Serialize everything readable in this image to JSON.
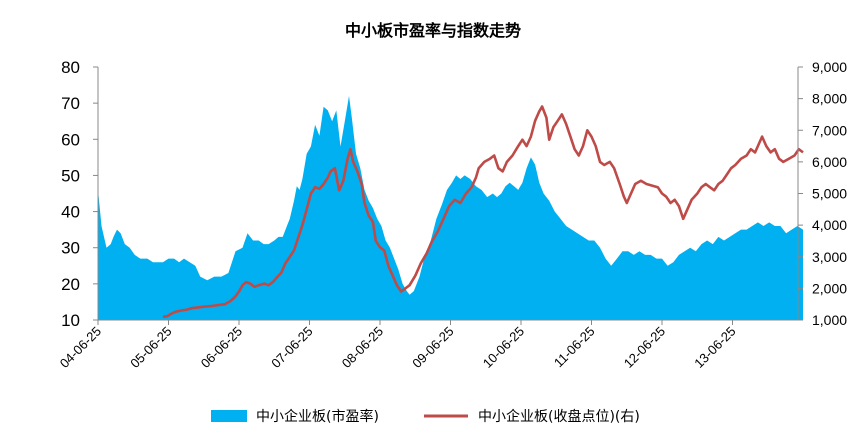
{
  "chart_data": {
    "type": "area+line",
    "title": "中小板市盈率与指数走势",
    "x_ticks": [
      "04-06-25",
      "05-06-25",
      "06-06-25",
      "07-06-25",
      "08-06-25",
      "09-06-25",
      "10-06-25",
      "11-06-25",
      "12-06-25",
      "13-06-25"
    ],
    "y_left": {
      "min": 10,
      "max": 80,
      "ticks": [
        "10",
        "20",
        "30",
        "40",
        "50",
        "60",
        "70",
        "80"
      ]
    },
    "y_right": {
      "min": 1000,
      "max": 9000,
      "ticks": [
        "1,000",
        "2,000",
        "3,000",
        "4,000",
        "5,000",
        "6,000",
        "7,000",
        "8,000",
        "9,000"
      ]
    },
    "legend_position": "bottom",
    "series": [
      {
        "name": "中小企业板(市盈率)",
        "type": "area",
        "axis": "left",
        "color": "#00b0f0",
        "points": [
          [
            0.0,
            46
          ],
          [
            0.05,
            36
          ],
          [
            0.12,
            30
          ],
          [
            0.18,
            31
          ],
          [
            0.22,
            33
          ],
          [
            0.27,
            35
          ],
          [
            0.32,
            34
          ],
          [
            0.38,
            31
          ],
          [
            0.45,
            30
          ],
          [
            0.52,
            28
          ],
          [
            0.6,
            27
          ],
          [
            0.7,
            27
          ],
          [
            0.78,
            26
          ],
          [
            0.85,
            26
          ],
          [
            0.92,
            26
          ],
          [
            1.0,
            27
          ],
          [
            1.08,
            27
          ],
          [
            1.15,
            26
          ],
          [
            1.22,
            27
          ],
          [
            1.3,
            26
          ],
          [
            1.38,
            25
          ],
          [
            1.45,
            22
          ],
          [
            1.55,
            21
          ],
          [
            1.65,
            22
          ],
          [
            1.75,
            22
          ],
          [
            1.85,
            23
          ],
          [
            1.95,
            29
          ],
          [
            2.05,
            30
          ],
          [
            2.12,
            34
          ],
          [
            2.2,
            32
          ],
          [
            2.28,
            32
          ],
          [
            2.35,
            31
          ],
          [
            2.42,
            31
          ],
          [
            2.5,
            32
          ],
          [
            2.56,
            33
          ],
          [
            2.62,
            33
          ],
          [
            2.68,
            36
          ],
          [
            2.72,
            38
          ],
          [
            2.78,
            43
          ],
          [
            2.82,
            47
          ],
          [
            2.86,
            46
          ],
          [
            2.9,
            49
          ],
          [
            2.96,
            56
          ],
          [
            3.02,
            58
          ],
          [
            3.08,
            64
          ],
          [
            3.14,
            61
          ],
          [
            3.2,
            69
          ],
          [
            3.26,
            68
          ],
          [
            3.32,
            65
          ],
          [
            3.38,
            68
          ],
          [
            3.44,
            58
          ],
          [
            3.5,
            65
          ],
          [
            3.56,
            72
          ],
          [
            3.6,
            66
          ],
          [
            3.66,
            56
          ],
          [
            3.72,
            52
          ],
          [
            3.78,
            46
          ],
          [
            3.84,
            43
          ],
          [
            3.9,
            41
          ],
          [
            3.96,
            38
          ],
          [
            4.02,
            36
          ],
          [
            4.08,
            32
          ],
          [
            4.14,
            30
          ],
          [
            4.2,
            27
          ],
          [
            4.26,
            24
          ],
          [
            4.32,
            20
          ],
          [
            4.38,
            18
          ],
          [
            4.42,
            17
          ],
          [
            4.48,
            18
          ],
          [
            4.56,
            22
          ],
          [
            4.64,
            28
          ],
          [
            4.72,
            32
          ],
          [
            4.8,
            38
          ],
          [
            4.88,
            42
          ],
          [
            4.95,
            46
          ],
          [
            5.02,
            48
          ],
          [
            5.08,
            50
          ],
          [
            5.14,
            49
          ],
          [
            5.2,
            50
          ],
          [
            5.28,
            49
          ],
          [
            5.36,
            47
          ],
          [
            5.44,
            46
          ],
          [
            5.52,
            44
          ],
          [
            5.6,
            45
          ],
          [
            5.66,
            44
          ],
          [
            5.72,
            45
          ],
          [
            5.78,
            47
          ],
          [
            5.84,
            48
          ],
          [
            5.9,
            47
          ],
          [
            5.96,
            46
          ],
          [
            6.02,
            48
          ],
          [
            6.08,
            52
          ],
          [
            6.14,
            55
          ],
          [
            6.2,
            53
          ],
          [
            6.26,
            48
          ],
          [
            6.32,
            45
          ],
          [
            6.4,
            43
          ],
          [
            6.48,
            40
          ],
          [
            6.56,
            38
          ],
          [
            6.64,
            36
          ],
          [
            6.72,
            35
          ],
          [
            6.8,
            34
          ],
          [
            6.88,
            33
          ],
          [
            6.96,
            32
          ],
          [
            7.04,
            32
          ],
          [
            7.12,
            30
          ],
          [
            7.2,
            27
          ],
          [
            7.28,
            25
          ],
          [
            7.36,
            27
          ],
          [
            7.44,
            29
          ],
          [
            7.52,
            29
          ],
          [
            7.6,
            28
          ],
          [
            7.68,
            29
          ],
          [
            7.76,
            28
          ],
          [
            7.84,
            28
          ],
          [
            7.92,
            27
          ],
          [
            8.0,
            27
          ],
          [
            8.08,
            25
          ],
          [
            8.16,
            26
          ],
          [
            8.24,
            28
          ],
          [
            8.32,
            29
          ],
          [
            8.4,
            30
          ],
          [
            8.48,
            29
          ],
          [
            8.56,
            31
          ],
          [
            8.64,
            32
          ],
          [
            8.72,
            31
          ],
          [
            8.8,
            33
          ],
          [
            8.88,
            32
          ],
          [
            8.96,
            33
          ],
          [
            9.04,
            34
          ],
          [
            9.12,
            35
          ],
          [
            9.2,
            35
          ],
          [
            9.28,
            36
          ],
          [
            9.36,
            37
          ],
          [
            9.44,
            36
          ],
          [
            9.52,
            37
          ],
          [
            9.6,
            36
          ],
          [
            9.68,
            36
          ],
          [
            9.76,
            34
          ],
          [
            9.84,
            35
          ],
          [
            9.92,
            36
          ],
          [
            10.0,
            35
          ]
        ]
      },
      {
        "name": "中小企业板(收盘点位)(右)",
        "type": "line",
        "axis": "right",
        "color": "#be4b48",
        "points": [
          [
            0.92,
            1100
          ],
          [
            0.98,
            1120
          ],
          [
            1.04,
            1200
          ],
          [
            1.1,
            1260
          ],
          [
            1.18,
            1300
          ],
          [
            1.26,
            1330
          ],
          [
            1.34,
            1380
          ],
          [
            1.42,
            1400
          ],
          [
            1.5,
            1420
          ],
          [
            1.6,
            1440
          ],
          [
            1.7,
            1470
          ],
          [
            1.8,
            1500
          ],
          [
            1.88,
            1600
          ],
          [
            1.95,
            1750
          ],
          [
            2.0,
            1900
          ],
          [
            2.05,
            2100
          ],
          [
            2.1,
            2200
          ],
          [
            2.16,
            2150
          ],
          [
            2.22,
            2050
          ],
          [
            2.28,
            2100
          ],
          [
            2.36,
            2150
          ],
          [
            2.42,
            2100
          ],
          [
            2.48,
            2200
          ],
          [
            2.54,
            2350
          ],
          [
            2.6,
            2500
          ],
          [
            2.66,
            2800
          ],
          [
            2.72,
            3000
          ],
          [
            2.78,
            3200
          ],
          [
            2.84,
            3600
          ],
          [
            2.9,
            4000
          ],
          [
            2.96,
            4500
          ],
          [
            3.02,
            5000
          ],
          [
            3.08,
            5200
          ],
          [
            3.14,
            5150
          ],
          [
            3.2,
            5300
          ],
          [
            3.26,
            5500
          ],
          [
            3.3,
            5700
          ],
          [
            3.36,
            5800
          ],
          [
            3.42,
            5100
          ],
          [
            3.48,
            5400
          ],
          [
            3.54,
            6100
          ],
          [
            3.58,
            6400
          ],
          [
            3.62,
            6000
          ],
          [
            3.68,
            5700
          ],
          [
            3.74,
            5300
          ],
          [
            3.78,
            4700
          ],
          [
            3.84,
            4300
          ],
          [
            3.9,
            4100
          ],
          [
            3.94,
            3500
          ],
          [
            4.0,
            3300
          ],
          [
            4.06,
            3200
          ],
          [
            4.12,
            2700
          ],
          [
            4.18,
            2400
          ],
          [
            4.24,
            2100
          ],
          [
            4.3,
            1900
          ],
          [
            4.36,
            2000
          ],
          [
            4.42,
            2100
          ],
          [
            4.5,
            2400
          ],
          [
            4.58,
            2800
          ],
          [
            4.66,
            3100
          ],
          [
            4.74,
            3500
          ],
          [
            4.82,
            3800
          ],
          [
            4.9,
            4200
          ],
          [
            4.98,
            4600
          ],
          [
            5.06,
            4800
          ],
          [
            5.14,
            4700
          ],
          [
            5.22,
            5000
          ],
          [
            5.3,
            5200
          ],
          [
            5.36,
            5500
          ],
          [
            5.4,
            5800
          ],
          [
            5.48,
            6000
          ],
          [
            5.56,
            6100
          ],
          [
            5.62,
            6200
          ],
          [
            5.68,
            5800
          ],
          [
            5.74,
            5700
          ],
          [
            5.8,
            6000
          ],
          [
            5.88,
            6200
          ],
          [
            5.96,
            6500
          ],
          [
            6.02,
            6700
          ],
          [
            6.08,
            6500
          ],
          [
            6.14,
            6800
          ],
          [
            6.2,
            7300
          ],
          [
            6.26,
            7600
          ],
          [
            6.3,
            7750
          ],
          [
            6.36,
            7400
          ],
          [
            6.4,
            6700
          ],
          [
            6.46,
            7100
          ],
          [
            6.52,
            7300
          ],
          [
            6.58,
            7500
          ],
          [
            6.64,
            7200
          ],
          [
            6.7,
            6800
          ],
          [
            6.76,
            6400
          ],
          [
            6.82,
            6200
          ],
          [
            6.88,
            6500
          ],
          [
            6.94,
            7000
          ],
          [
            7.0,
            6800
          ],
          [
            7.06,
            6500
          ],
          [
            7.12,
            6000
          ],
          [
            7.18,
            5900
          ],
          [
            7.26,
            6000
          ],
          [
            7.32,
            5800
          ],
          [
            7.4,
            5300
          ],
          [
            7.46,
            4900
          ],
          [
            7.5,
            4700
          ],
          [
            7.56,
            5000
          ],
          [
            7.62,
            5300
          ],
          [
            7.7,
            5400
          ],
          [
            7.78,
            5300
          ],
          [
            7.86,
            5250
          ],
          [
            7.94,
            5200
          ],
          [
            8.0,
            5000
          ],
          [
            8.06,
            4900
          ],
          [
            8.12,
            4700
          ],
          [
            8.18,
            4800
          ],
          [
            8.24,
            4600
          ],
          [
            8.3,
            4200
          ],
          [
            8.36,
            4500
          ],
          [
            8.42,
            4800
          ],
          [
            8.5,
            5000
          ],
          [
            8.56,
            5200
          ],
          [
            8.62,
            5300
          ],
          [
            8.68,
            5200
          ],
          [
            8.74,
            5100
          ],
          [
            8.8,
            5300
          ],
          [
            8.86,
            5400
          ],
          [
            8.92,
            5600
          ],
          [
            8.98,
            5800
          ],
          [
            9.04,
            5900
          ],
          [
            9.12,
            6100
          ],
          [
            9.2,
            6200
          ],
          [
            9.26,
            6400
          ],
          [
            9.32,
            6300
          ],
          [
            9.38,
            6600
          ],
          [
            9.42,
            6800
          ],
          [
            9.48,
            6500
          ],
          [
            9.54,
            6300
          ],
          [
            9.6,
            6400
          ],
          [
            9.66,
            6100
          ],
          [
            9.72,
            6000
          ],
          [
            9.8,
            6100
          ],
          [
            9.88,
            6200
          ],
          [
            9.94,
            6400
          ],
          [
            10.0,
            6300
          ]
        ]
      }
    ]
  }
}
